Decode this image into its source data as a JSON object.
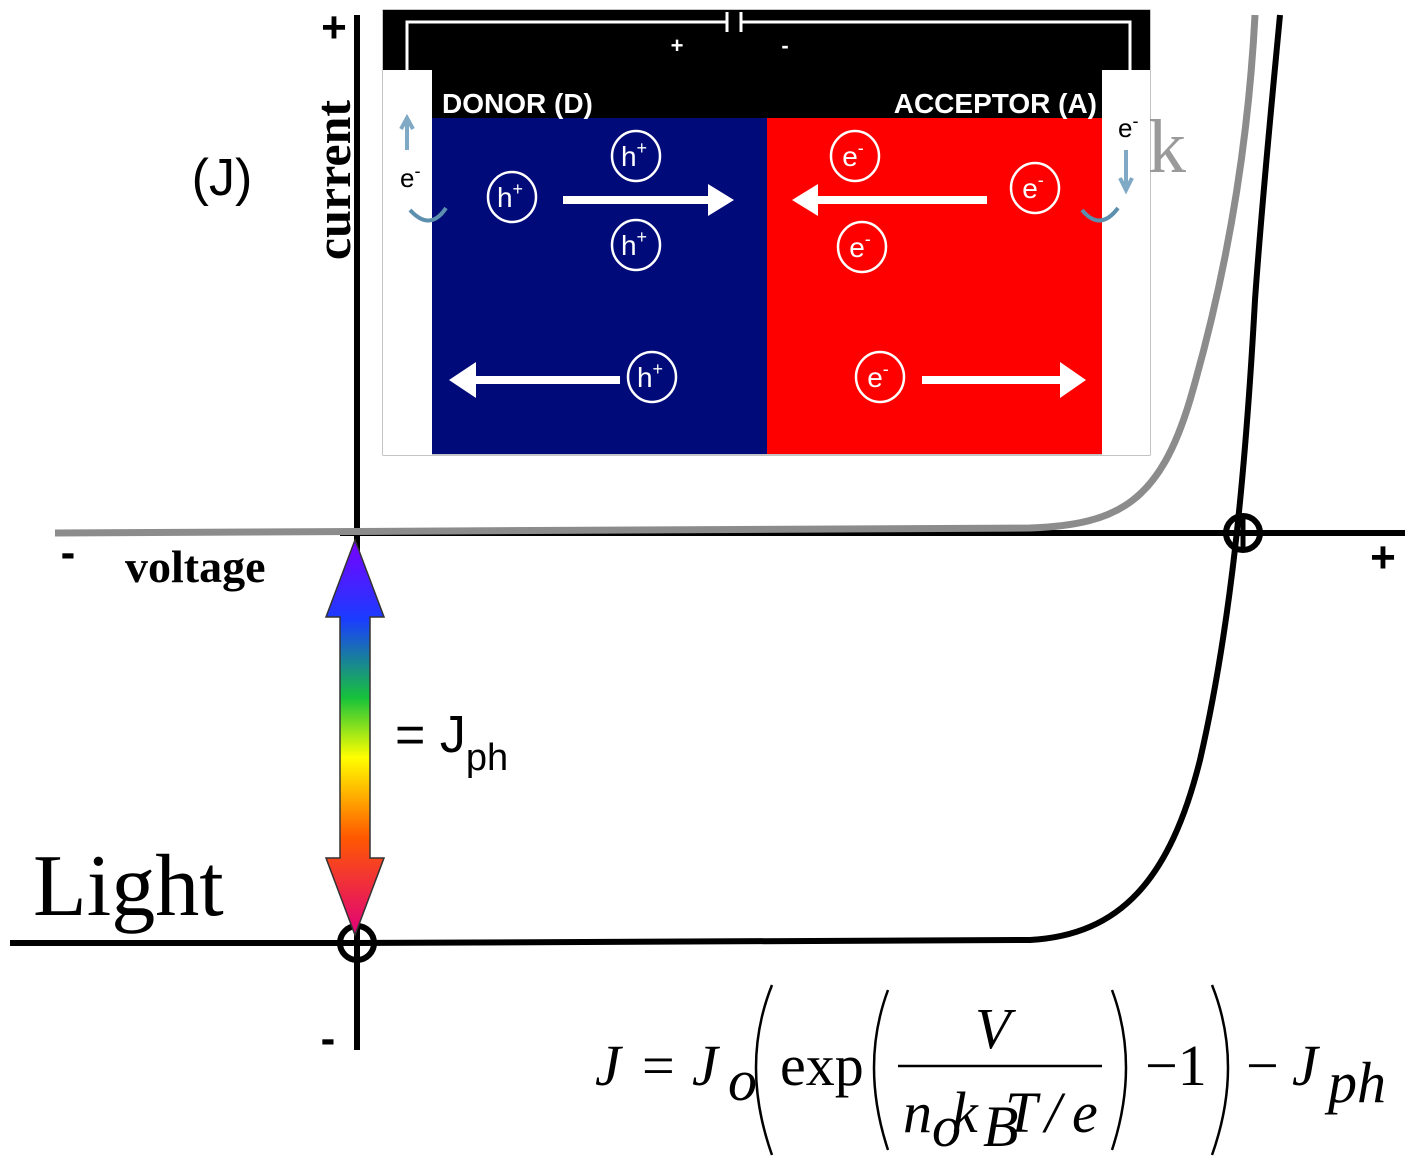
{
  "axes": {
    "y_plus": "+",
    "y_label": "current",
    "y_unit": "(J)",
    "x_minus": "-",
    "x_label": "voltage",
    "x_plus": "+",
    "y_minus": "-"
  },
  "curves": {
    "dark_label_fragment": "k",
    "light_label": "Light"
  },
  "photocurrent": {
    "prefix": "= J",
    "subscript": "ph"
  },
  "inset": {
    "battery_plus": "+",
    "battery_minus": "-",
    "donor": "DONOR (D)",
    "acceptor": "ACCEPTOR (A)",
    "left_electron": {
      "base": "e",
      "charge": "-"
    },
    "right_electron": {
      "base": "e",
      "charge": "-"
    },
    "holes": [
      {
        "base": "h",
        "charge": "+"
      },
      {
        "base": "h",
        "charge": "+"
      },
      {
        "base": "h",
        "charge": "+"
      },
      {
        "base": "h",
        "charge": "+"
      }
    ],
    "electrons": [
      {
        "base": "e",
        "charge": "-"
      },
      {
        "base": "e",
        "charge": "-"
      },
      {
        "base": "e",
        "charge": "-"
      },
      {
        "base": "e",
        "charge": "-"
      }
    ]
  },
  "equation": {
    "tokens": [
      "J",
      "=",
      "J",
      "o",
      "exp",
      "V",
      "n",
      "o",
      "k",
      "B",
      "T",
      "/",
      "e",
      "−1",
      "−",
      "J",
      "ph"
    ]
  }
}
